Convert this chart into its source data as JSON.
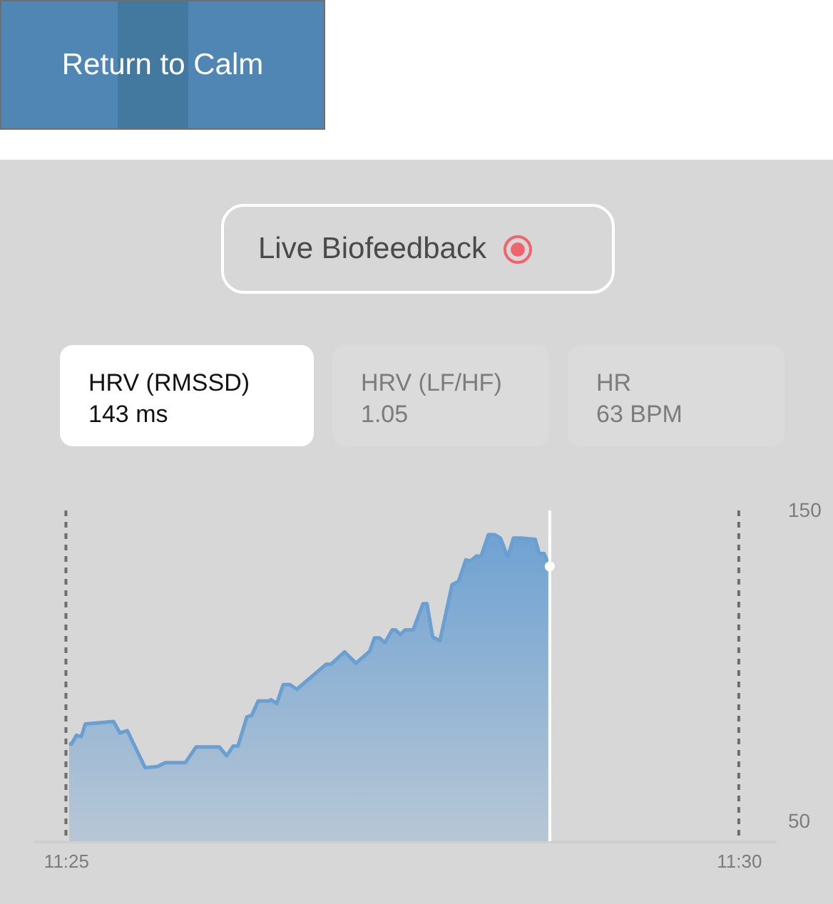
{
  "chart_data": {
    "type": "area",
    "title": "Live Biofeedback",
    "annotations": [
      "Return to Calm",
      "HRV (RMSSD)",
      "143 ms",
      "HRV (LF/HF)",
      "1.05",
      "HR",
      "63 BPM"
    ],
    "xlim": [
      11.4126,
      11.5046
    ],
    "xticks": [
      {
        "value": 11.4167,
        "label": "11:25"
      },
      {
        "value": 11.5,
        "label": "11:30"
      }
    ],
    "ylim": [
      43.6,
      150
    ],
    "yticks": [
      50,
      150
    ],
    "series": [
      {
        "color": "#6a9fd2",
        "x": [
          11.4171,
          11.4174,
          11.418,
          11.4186,
          11.4191,
          11.4226,
          11.4234,
          11.4243,
          11.4265,
          11.428,
          11.429,
          11.4315,
          11.4328,
          11.4357,
          11.4366,
          11.4374,
          11.438,
          11.4391,
          11.4397,
          11.4405,
          11.4418,
          11.4421,
          11.4428,
          11.4436,
          11.4444,
          11.4453,
          11.4489,
          11.4495,
          11.4512,
          11.4526,
          11.4543,
          11.4549,
          11.4555,
          11.4562,
          11.4571,
          11.4575,
          11.4581,
          11.4587,
          11.4597,
          11.4609,
          11.4614,
          11.4621,
          11.463,
          11.4645,
          11.4653,
          11.4662,
          11.4668,
          11.4675,
          11.4681,
          11.469,
          11.4698,
          11.4705,
          11.4714,
          11.4721,
          11.473,
          11.4748,
          11.4753,
          11.4759,
          11.4766
        ],
        "values": [
          74.9,
          74.9,
          77.7,
          77.2,
          81.3,
          82.1,
          78.4,
          79.2,
          67.3,
          67.6,
          68.9,
          68.9,
          73.9,
          73.9,
          71.1,
          74.2,
          74.2,
          83.6,
          84.1,
          88.7,
          88.7,
          89.1,
          87.9,
          94.0,
          94.0,
          92.5,
          100.5,
          100.5,
          104.5,
          100.9,
          104.7,
          109.0,
          109.0,
          107.5,
          111.6,
          111.6,
          110.1,
          111.6,
          111.6,
          120.0,
          120.0,
          109.3,
          108.1,
          126.1,
          127.2,
          134.1,
          133.8,
          135.3,
          135.3,
          142.2,
          142.2,
          141.1,
          135.0,
          141.1,
          141.1,
          140.7,
          136.1,
          136.1,
          132.0
        ]
      },
      {
        "type": "scatter",
        "color": "#ffffff",
        "x": [
          11.4766
        ],
        "values": [
          132.0
        ]
      }
    ],
    "ref_lines": [
      {
        "axis": "x",
        "value": 11.4167,
        "color": "#6e6e6e",
        "line_style": "dashed"
      },
      {
        "axis": "x",
        "value": 11.5,
        "color": "#6e6e6e",
        "line_style": "dashed"
      },
      {
        "axis": "x",
        "value": 11.4766,
        "color": "#ffffff",
        "line_style": "solid"
      }
    ]
  }
}
